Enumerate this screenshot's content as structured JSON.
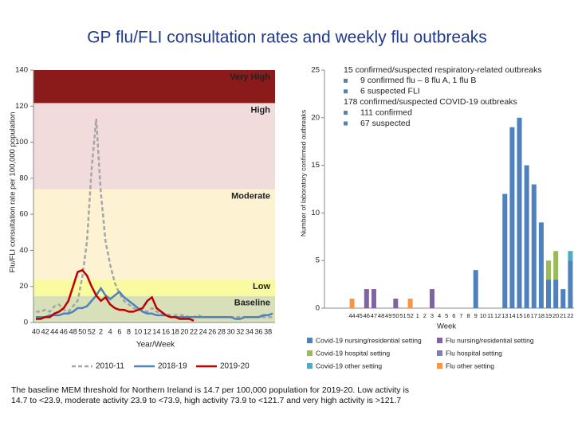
{
  "title": "GP flu/FLI consultation rates and weekly flu outbreaks",
  "footnote": "The baseline MEM threshold for Northern Ireland is 14.7 per 100,000 population for 2019-20. Low activity is 14.7 to <23.9, moderate activity 23.9 to <73.9, high activity 73.9 to <121.7 and very high activity is >121.7",
  "chart_data": [
    {
      "type": "line",
      "ylabel": "Flu/FLI consultation rate per 100,000 population",
      "xlabel": "Year/Week",
      "ylim": [
        0,
        140
      ],
      "yticks": [
        0,
        20,
        40,
        60,
        80,
        100,
        120,
        140
      ],
      "bands": [
        {
          "name": "Baseline",
          "upper": 14.7,
          "color": "#d7e0b8"
        },
        {
          "name": "Low",
          "upper": 23.9,
          "color": "#fafaa0"
        },
        {
          "name": "Moderate",
          "upper": 73.9,
          "color": "#fdf3d2"
        },
        {
          "name": "High",
          "upper": 121.7,
          "color": "#f2dcdb"
        },
        {
          "name": "Very High",
          "color": "#8b1a1a"
        }
      ],
      "categories": [
        "40",
        null,
        "42",
        null,
        "44",
        null,
        "46",
        null,
        "48",
        null,
        "50",
        null,
        "52",
        null,
        "2",
        null,
        "4",
        null,
        "6",
        null,
        "8",
        null,
        "10",
        null,
        "12",
        null,
        "14",
        null,
        "16",
        null,
        "18",
        null,
        "20",
        null,
        "22",
        null,
        "24",
        null,
        "26",
        null,
        "28",
        null,
        "30",
        null,
        "32",
        null,
        "34",
        null,
        "36",
        null,
        "38",
        null
      ],
      "series": [
        {
          "name": "2010-11",
          "color": "#a6a6a6",
          "line_style": "dashed",
          "values": [
            6,
            6,
            7,
            6,
            9,
            10,
            7,
            6,
            9,
            12,
            25,
            45,
            85,
            113,
            72,
            45,
            32,
            22,
            16,
            12,
            10,
            8,
            7,
            7,
            6,
            8,
            6,
            5,
            5,
            4,
            4,
            4,
            4,
            3,
            3,
            4,
            3,
            3,
            3,
            3,
            3,
            3,
            3,
            3,
            3,
            3,
            3,
            3,
            3,
            3,
            3,
            3
          ]
        },
        {
          "name": "2018-19",
          "color": "#4f81bd",
          "line_style": "solid",
          "values": [
            3,
            3,
            3,
            4,
            4,
            4,
            5,
            5,
            6,
            8,
            8,
            9,
            12,
            15,
            19,
            15,
            13,
            15,
            17,
            14,
            12,
            10,
            8,
            6,
            5,
            5,
            4,
            4,
            4,
            3,
            3,
            3,
            3,
            3,
            3,
            3,
            3,
            3,
            3,
            3,
            3,
            3,
            3,
            2,
            2,
            3,
            3,
            3,
            3,
            4,
            4,
            5
          ]
        },
        {
          "name": "2019-20",
          "color": "#c00000",
          "line_style": "solid",
          "values": [
            2,
            2,
            3,
            3,
            5,
            6,
            8,
            12,
            20,
            28,
            29,
            26,
            20,
            15,
            12,
            14,
            10,
            8,
            7,
            7,
            6,
            6,
            7,
            8,
            12,
            14,
            8,
            6,
            4,
            3,
            3,
            2,
            2,
            2,
            1,
            null,
            null,
            null,
            null,
            null,
            null,
            null,
            null,
            null,
            null,
            null,
            null,
            null,
            null,
            null,
            null,
            null
          ]
        }
      ]
    },
    {
      "type": "stacked_bar",
      "ylabel": "Number of laboratory confirmed outbreaks",
      "xlabel": "Week",
      "ylim": [
        0,
        25
      ],
      "yticks": [
        0,
        5,
        10,
        15,
        20,
        25
      ],
      "categories": [
        "44",
        "45",
        "46",
        "47",
        "48",
        "49",
        "50",
        "51",
        "52",
        "1",
        "2",
        "3",
        "4",
        "5",
        "6",
        "7",
        "8",
        "9",
        "10",
        "11",
        "12",
        "13",
        "14",
        "15",
        "16",
        "17",
        "18",
        "19",
        "20",
        "21",
        "22"
      ],
      "annotations": [
        {
          "text": "15 confirmed/suspected respiratory-related outbreaks",
          "level": 0
        },
        {
          "text": "9 confirmed flu – 8 flu A, 1 flu B",
          "level": 1
        },
        {
          "text": "6 suspected FLI",
          "level": 1
        },
        {
          "text": "178 confirmed/suspected COVID-19 outbreaks",
          "level": 0
        },
        {
          "text": "111 confirmed",
          "level": 1
        },
        {
          "text": "67 suspected",
          "level": 1
        }
      ],
      "series": [
        {
          "name": "Covid-19 nursing/residential setting",
          "color": "#4f81bd",
          "values": [
            0,
            0,
            0,
            0,
            0,
            0,
            0,
            0,
            0,
            0,
            0,
            0,
            0,
            0,
            0,
            0,
            0,
            4,
            0,
            0,
            0,
            12,
            19,
            20,
            15,
            13,
            9,
            3,
            3,
            2,
            5
          ]
        },
        {
          "name": "Flu nursing/residential setting",
          "color": "#8064a2",
          "values": [
            0,
            0,
            2,
            2,
            0,
            0,
            1,
            0,
            0,
            0,
            0,
            2,
            0,
            0,
            0,
            0,
            0,
            0,
            0,
            0,
            0,
            0,
            0,
            0,
            0,
            0,
            0,
            0,
            0,
            0,
            0
          ]
        },
        {
          "name": "Covid-19 hospital setting",
          "color": "#9bbb59",
          "values": [
            0,
            0,
            0,
            0,
            0,
            0,
            0,
            0,
            0,
            0,
            0,
            0,
            0,
            0,
            0,
            0,
            0,
            0,
            0,
            0,
            0,
            0,
            0,
            0,
            0,
            0,
            0,
            2,
            3,
            0,
            0
          ]
        },
        {
          "name": "Flu hospital setting",
          "color": "#7f7fa8",
          "values": [
            0,
            0,
            0,
            0,
            0,
            0,
            0,
            0,
            0,
            0,
            0,
            0,
            0,
            0,
            0,
            0,
            0,
            0,
            0,
            0,
            0,
            0,
            0,
            0,
            0,
            0,
            0,
            0,
            0,
            0,
            0
          ]
        },
        {
          "name": "Covid-19 other setting",
          "color": "#4bacc6",
          "values": [
            0,
            0,
            0,
            0,
            0,
            0,
            0,
            0,
            0,
            0,
            0,
            0,
            0,
            0,
            0,
            0,
            0,
            0,
            0,
            0,
            0,
            0,
            0,
            0,
            0,
            0,
            0,
            0,
            0,
            0,
            1
          ]
        },
        {
          "name": "Flu other setting",
          "color": "#f79646",
          "values": [
            1,
            0,
            0,
            0,
            0,
            0,
            0,
            0,
            1,
            0,
            0,
            0,
            0,
            0,
            0,
            0,
            0,
            0,
            0,
            0,
            0,
            0,
            0,
            0,
            0,
            0,
            0,
            0,
            0,
            0,
            0
          ]
        }
      ]
    }
  ]
}
